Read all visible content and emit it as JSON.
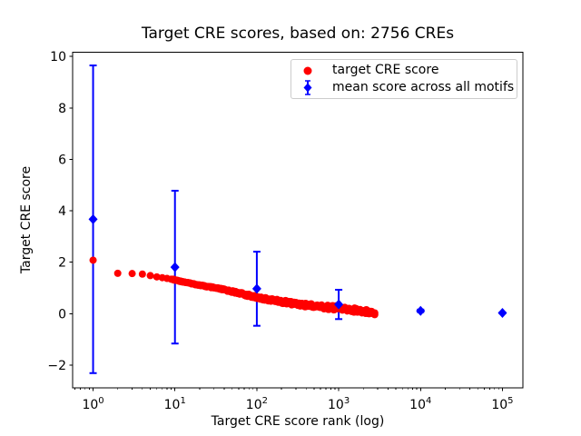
{
  "chart_data": {
    "type": "scatter",
    "title": "Target CRE scores, based on: 2756 CREs",
    "xlabel": "Target CRE score rank (log)",
    "ylabel": "Target CRE score",
    "x_scale": "log",
    "xlim_log10": [
      -0.25,
      5.25
    ],
    "ylim": [
      -2.89,
      10.16
    ],
    "x_tick_exponents": [
      0,
      1,
      2,
      3,
      4,
      5
    ],
    "y_ticks": [
      -2,
      0,
      2,
      4,
      6,
      8,
      10
    ],
    "grid": false,
    "colors": {
      "target": "#ff0000",
      "mean": "#0000ff",
      "frame": "#000000",
      "legend_border": "#cccccc"
    },
    "legend": {
      "position": "upper right",
      "entries": [
        {
          "label": "target CRE score",
          "marker": "circle",
          "color": "#ff0000"
        },
        {
          "label": "mean score across all motifs",
          "marker": "diamond-errorbar",
          "color": "#0000ff"
        }
      ]
    },
    "series": [
      {
        "name": "target CRE score",
        "type": "scatter",
        "marker": "circle",
        "color": "#ff0000",
        "points": [
          [
            1,
            2.08
          ],
          [
            2,
            1.57
          ],
          [
            3,
            1.56
          ],
          [
            4,
            1.54
          ],
          [
            5,
            1.48
          ],
          [
            6,
            1.43
          ],
          [
            7,
            1.4
          ],
          [
            8,
            1.37
          ],
          [
            9,
            1.34
          ],
          [
            10,
            1.31
          ],
          [
            13,
            1.23
          ],
          [
            16,
            1.17
          ],
          [
            20,
            1.11
          ],
          [
            25,
            1.05
          ],
          [
            32,
            0.99
          ],
          [
            40,
            0.93
          ],
          [
            50,
            0.86
          ],
          [
            63,
            0.79
          ],
          [
            79,
            0.71
          ],
          [
            100,
            0.63
          ],
          [
            126,
            0.57
          ],
          [
            158,
            0.52
          ],
          [
            200,
            0.47
          ],
          [
            251,
            0.42
          ],
          [
            316,
            0.38
          ],
          [
            398,
            0.34
          ],
          [
            501,
            0.3
          ],
          [
            631,
            0.27
          ],
          [
            794,
            0.24
          ],
          [
            1000,
            0.21
          ],
          [
            1259,
            0.17
          ],
          [
            1585,
            0.14
          ],
          [
            1995,
            0.1
          ],
          [
            2512,
            0.06
          ],
          [
            2756,
            0.03
          ]
        ]
      },
      {
        "name": "mean score across all motifs",
        "type": "errorbar",
        "marker": "diamond",
        "color": "#0000ff",
        "x": [
          1,
          10,
          100,
          1000,
          10000,
          100000
        ],
        "mean": [
          3.67,
          1.81,
          0.97,
          0.36,
          0.11,
          0.03
        ],
        "err": [
          5.98,
          2.97,
          1.44,
          0.57,
          0.05,
          0.02
        ]
      }
    ]
  }
}
